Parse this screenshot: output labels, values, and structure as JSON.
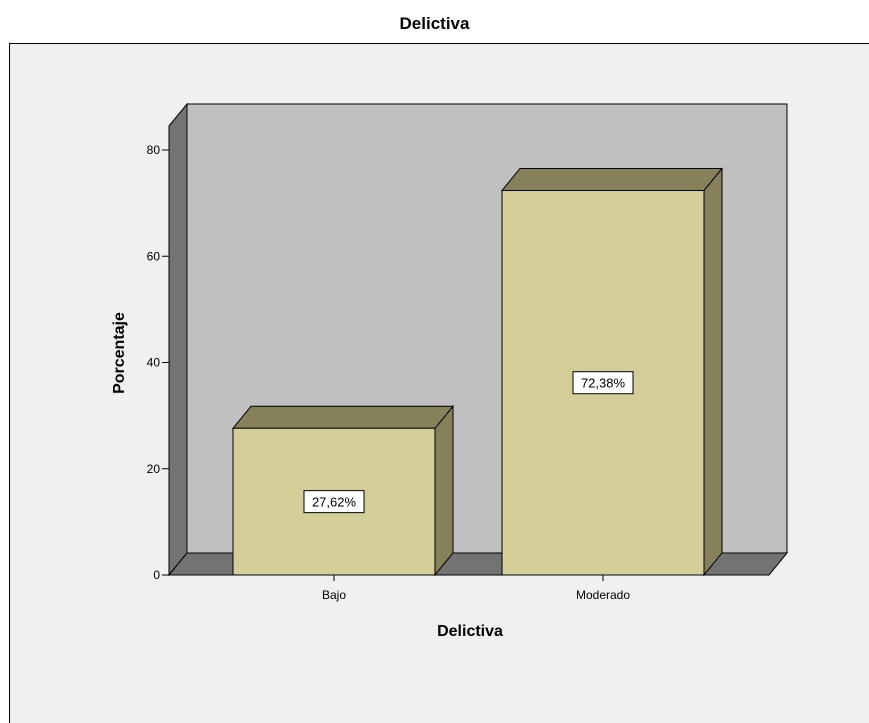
{
  "colors": {
    "wall": "#c0c0c0",
    "side_wall": "#737373",
    "floor": "#737373",
    "bar_front": "#d3ce97",
    "bar_top": "#86815a",
    "bar_side": "#86815a",
    "frame_bg": "#f0f0f0"
  },
  "chart_data": {
    "type": "bar",
    "title": "Delictiva",
    "xlabel": "Delictiva",
    "ylabel": "Porcentaje",
    "categories": [
      "Bajo",
      "Moderado"
    ],
    "values": [
      27.62,
      72.38
    ],
    "data_labels": [
      "27,62%",
      "72,38%"
    ],
    "y_ticks": [
      0,
      20,
      40,
      60,
      80
    ],
    "ylim": [
      0,
      80
    ],
    "grid": false,
    "legend": "none",
    "style": "3d"
  }
}
